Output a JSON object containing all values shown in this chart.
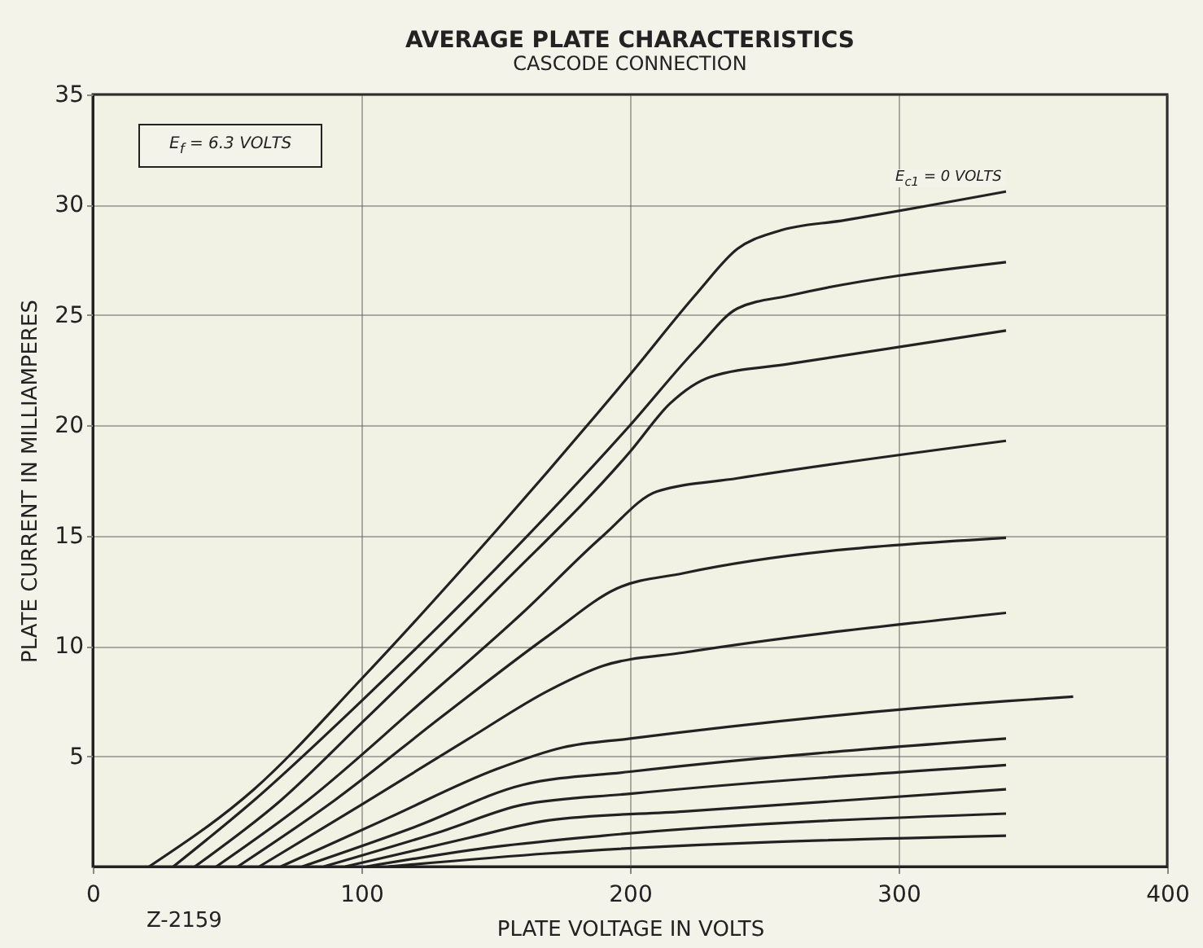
{
  "chart_data": {
    "type": "line",
    "title": "AVERAGE PLATE CHARACTERISTICS",
    "subtitle": "CASCODE CONNECTION",
    "xlabel": "PLATE VOLTAGE IN VOLTS",
    "ylabel": "PLATE CURRENT IN MILLIAMPERES",
    "annotations": [
      "Z-2159",
      "E$_{f}$ = 6.3 VOLTS"
    ],
    "xlim": [
      0,
      400
    ],
    "ylim": [
      0,
      35
    ],
    "xticks": [
      0,
      100,
      200,
      300,
      400
    ],
    "yticks": [
      5,
      10,
      15,
      20,
      25,
      30,
      35
    ],
    "grid": true,
    "series": [
      {
        "name": "E$_{c1}$ = 0 VOLTS",
        "color": "#222222",
        "x": [
          21,
          60,
          100,
          150,
          200,
          225,
          240,
          255,
          280,
          340
        ],
        "values": [
          0,
          3.5,
          8.5,
          15.2,
          22.3,
          26,
          28,
          28.8,
          29.3,
          30.6
        ]
      },
      {
        "color": "#222222",
        "x": [
          30,
          60,
          100,
          150,
          200,
          225,
          240,
          260,
          340
        ],
        "values": [
          0,
          3,
          7.5,
          13.5,
          20,
          23.5,
          25.3,
          25.9,
          27.4
        ]
      },
      {
        "color": "#222222",
        "x": [
          38,
          70,
          100,
          150,
          200,
          215,
          230,
          260,
          340
        ],
        "values": [
          0,
          3,
          6.5,
          12.5,
          18.8,
          21,
          22.2,
          22.8,
          24.3
        ]
      },
      {
        "color": "#222222",
        "x": [
          46,
          80,
          120,
          160,
          190,
          210,
          240,
          340
        ],
        "values": [
          0,
          3,
          7.2,
          11.5,
          15,
          17,
          17.6,
          19.3
        ]
      },
      {
        "color": "#222222",
        "x": [
          54,
          90,
          130,
          170,
          195,
          220,
          340
        ],
        "values": [
          0,
          3,
          6.8,
          10.5,
          12.6,
          13.3,
          14.9
        ]
      },
      {
        "color": "#222222",
        "x": [
          62,
          100,
          140,
          170,
          190,
          220,
          340
        ],
        "values": [
          0,
          2.8,
          5.8,
          8,
          9.1,
          9.7,
          11.5
        ]
      },
      {
        "color": "#222222",
        "x": [
          70,
          110,
          150,
          175,
          200,
          340,
          365
        ],
        "values": [
          0,
          2.2,
          4.4,
          5.4,
          5.8,
          7.5,
          7.7
        ]
      },
      {
        "color": "#222222",
        "x": [
          78,
          120,
          160,
          200,
          340
        ],
        "values": [
          0,
          1.8,
          3.7,
          4.3,
          5.8
        ]
      },
      {
        "color": "#222222",
        "x": [
          86,
          130,
          160,
          200,
          340
        ],
        "values": [
          0,
          1.6,
          2.8,
          3.3,
          4.6
        ]
      },
      {
        "color": "#222222",
        "x": [
          94,
          140,
          170,
          220,
          340
        ],
        "values": [
          0,
          1.3,
          2.1,
          2.5,
          3.5
        ]
      },
      {
        "color": "#222222",
        "x": [
          102,
          150,
          190,
          340
        ],
        "values": [
          0,
          0.9,
          1.4,
          2.4
        ]
      },
      {
        "color": "#222222",
        "x": [
          110,
          170,
          340
        ],
        "values": [
          0,
          0.6,
          1.4
        ]
      }
    ]
  }
}
